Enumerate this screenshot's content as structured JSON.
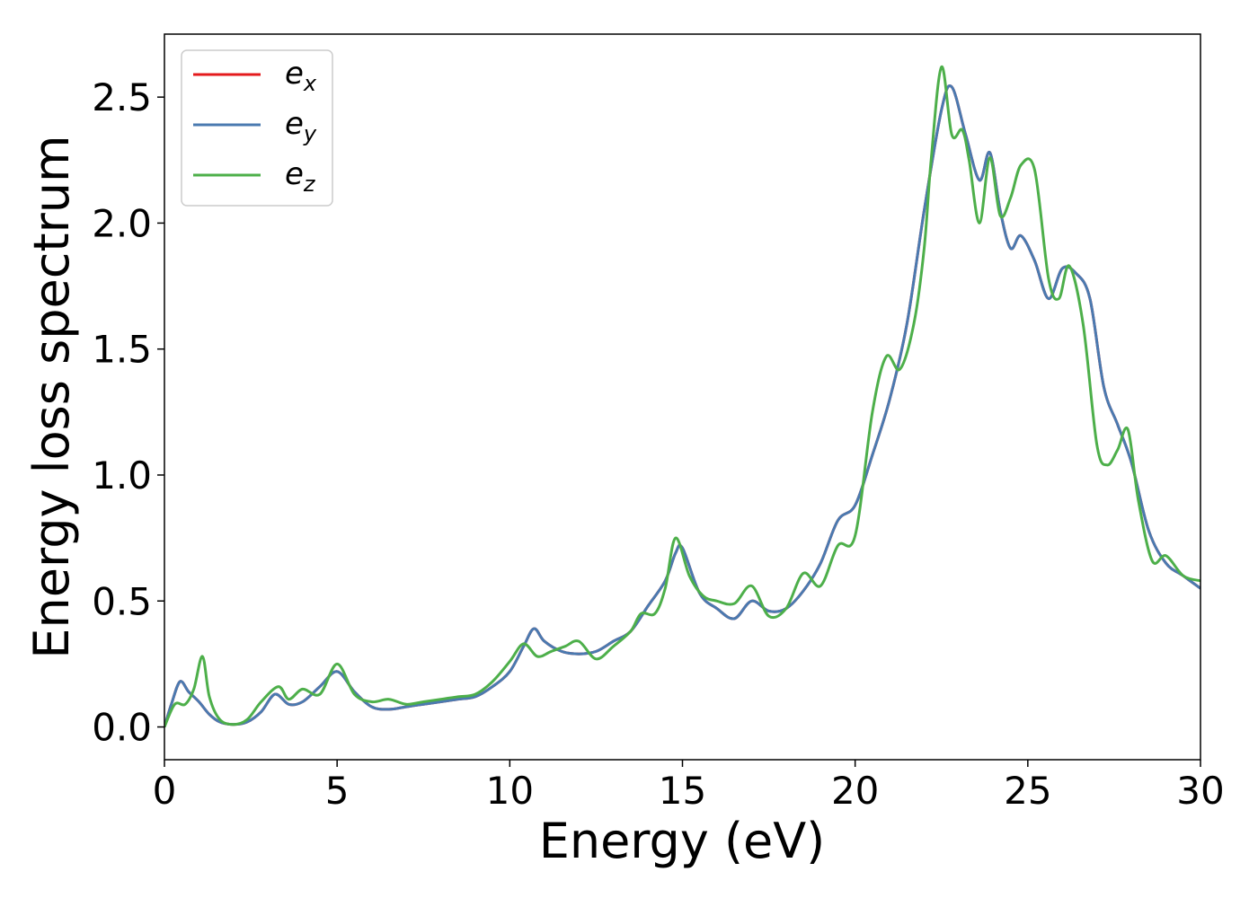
{
  "chart_data": {
    "type": "line",
    "xlabel": "Energy (eV)",
    "ylabel": "Energy loss spectrum",
    "xlim": [
      0,
      30
    ],
    "ylim": [
      -0.13,
      2.75
    ],
    "xticks": [
      0,
      5,
      10,
      15,
      20,
      25,
      30
    ],
    "xtick_labels": [
      "0",
      "5",
      "10",
      "15",
      "20",
      "25",
      "30"
    ],
    "yticks": [
      0.0,
      0.5,
      1.0,
      1.5,
      2.0,
      2.5
    ],
    "ytick_labels": [
      "0.0",
      "0.5",
      "1.0",
      "1.5",
      "2.0",
      "2.5"
    ],
    "grid": false,
    "legend_position": "top-left",
    "series": [
      {
        "name": "e",
        "name_sub": "x",
        "color": "#e41a1c",
        "x": [
          0,
          0.2,
          0.45,
          0.7,
          1.0,
          1.3,
          1.6,
          2.0,
          2.4,
          2.8,
          3.2,
          3.6,
          4.0,
          4.5,
          5.0,
          5.5,
          6.0,
          6.5,
          7.0,
          7.5,
          8.0,
          8.5,
          9.0,
          9.5,
          10.0,
          10.4,
          10.7,
          11.0,
          11.5,
          12.0,
          12.5,
          13.0,
          13.5,
          14.0,
          14.5,
          14.8,
          15.0,
          15.5,
          16.0,
          16.5,
          17.0,
          17.5,
          18.0,
          18.5,
          19.0,
          19.5,
          20.0,
          20.5,
          21.0,
          21.5,
          22.0,
          22.5,
          22.8,
          23.2,
          23.6,
          23.9,
          24.2,
          24.5,
          24.8,
          25.2,
          25.6,
          26.0,
          26.4,
          26.8,
          27.2,
          27.6,
          28.0,
          28.5,
          29.0,
          29.5,
          30.0
        ],
        "values": [
          0.0,
          0.09,
          0.18,
          0.14,
          0.1,
          0.05,
          0.02,
          0.01,
          0.02,
          0.06,
          0.13,
          0.09,
          0.1,
          0.16,
          0.22,
          0.14,
          0.08,
          0.07,
          0.08,
          0.09,
          0.1,
          0.11,
          0.12,
          0.16,
          0.22,
          0.32,
          0.39,
          0.34,
          0.3,
          0.29,
          0.3,
          0.34,
          0.38,
          0.48,
          0.58,
          0.69,
          0.71,
          0.53,
          0.47,
          0.43,
          0.5,
          0.46,
          0.47,
          0.54,
          0.65,
          0.82,
          0.88,
          1.08,
          1.3,
          1.6,
          2.05,
          2.45,
          2.54,
          2.35,
          2.17,
          2.28,
          2.05,
          1.9,
          1.95,
          1.85,
          1.7,
          1.82,
          1.8,
          1.7,
          1.35,
          1.2,
          1.05,
          0.78,
          0.65,
          0.6,
          0.55
        ]
      },
      {
        "name": "e",
        "name_sub": "y",
        "color": "#4a7ab0",
        "x": [
          0,
          0.2,
          0.45,
          0.7,
          1.0,
          1.3,
          1.6,
          2.0,
          2.4,
          2.8,
          3.2,
          3.6,
          4.0,
          4.5,
          5.0,
          5.5,
          6.0,
          6.5,
          7.0,
          7.5,
          8.0,
          8.5,
          9.0,
          9.5,
          10.0,
          10.4,
          10.7,
          11.0,
          11.5,
          12.0,
          12.5,
          13.0,
          13.5,
          14.0,
          14.5,
          14.8,
          15.0,
          15.5,
          16.0,
          16.5,
          17.0,
          17.5,
          18.0,
          18.5,
          19.0,
          19.5,
          20.0,
          20.5,
          21.0,
          21.5,
          22.0,
          22.5,
          22.8,
          23.2,
          23.6,
          23.9,
          24.2,
          24.5,
          24.8,
          25.2,
          25.6,
          26.0,
          26.4,
          26.8,
          27.2,
          27.6,
          28.0,
          28.5,
          29.0,
          29.5,
          30.0
        ],
        "values": [
          0.0,
          0.09,
          0.18,
          0.14,
          0.1,
          0.05,
          0.02,
          0.01,
          0.02,
          0.06,
          0.13,
          0.09,
          0.1,
          0.16,
          0.22,
          0.14,
          0.08,
          0.07,
          0.08,
          0.09,
          0.1,
          0.11,
          0.12,
          0.16,
          0.22,
          0.32,
          0.39,
          0.34,
          0.3,
          0.29,
          0.3,
          0.34,
          0.38,
          0.48,
          0.58,
          0.69,
          0.71,
          0.53,
          0.47,
          0.43,
          0.5,
          0.46,
          0.47,
          0.54,
          0.65,
          0.82,
          0.88,
          1.08,
          1.3,
          1.6,
          2.05,
          2.45,
          2.54,
          2.35,
          2.17,
          2.28,
          2.05,
          1.9,
          1.95,
          1.85,
          1.7,
          1.82,
          1.8,
          1.7,
          1.35,
          1.2,
          1.05,
          0.78,
          0.65,
          0.6,
          0.55
        ]
      },
      {
        "name": "e",
        "name_sub": "z",
        "color": "#4daf4a",
        "x": [
          0,
          0.3,
          0.6,
          0.85,
          1.1,
          1.3,
          1.6,
          2.0,
          2.4,
          2.8,
          3.3,
          3.6,
          4.0,
          4.5,
          5.0,
          5.5,
          6.0,
          6.5,
          7.0,
          7.5,
          8.0,
          8.5,
          9.0,
          9.5,
          10.0,
          10.4,
          10.8,
          11.2,
          11.6,
          12.0,
          12.5,
          13.0,
          13.5,
          13.8,
          14.2,
          14.5,
          14.8,
          15.2,
          15.6,
          16.0,
          16.5,
          17.0,
          17.5,
          18.0,
          18.5,
          19.0,
          19.5,
          20.0,
          20.5,
          20.9,
          21.3,
          21.7,
          22.0,
          22.2,
          22.5,
          22.8,
          23.1,
          23.3,
          23.6,
          23.9,
          24.2,
          24.5,
          24.8,
          25.2,
          25.6,
          25.9,
          26.2,
          26.6,
          27.0,
          27.3,
          27.6,
          27.9,
          28.2,
          28.6,
          29.0,
          29.5,
          30.0
        ],
        "values": [
          0.0,
          0.09,
          0.09,
          0.15,
          0.28,
          0.12,
          0.03,
          0.01,
          0.03,
          0.1,
          0.16,
          0.11,
          0.15,
          0.13,
          0.25,
          0.13,
          0.1,
          0.11,
          0.09,
          0.1,
          0.11,
          0.12,
          0.13,
          0.18,
          0.26,
          0.33,
          0.28,
          0.3,
          0.32,
          0.34,
          0.27,
          0.32,
          0.38,
          0.45,
          0.45,
          0.55,
          0.75,
          0.6,
          0.52,
          0.5,
          0.49,
          0.56,
          0.44,
          0.47,
          0.61,
          0.56,
          0.72,
          0.76,
          1.25,
          1.47,
          1.42,
          1.6,
          1.9,
          2.25,
          2.62,
          2.35,
          2.37,
          2.25,
          2.0,
          2.26,
          2.03,
          2.1,
          2.23,
          2.21,
          1.78,
          1.7,
          1.83,
          1.6,
          1.12,
          1.04,
          1.1,
          1.18,
          0.9,
          0.66,
          0.68,
          0.6,
          0.58
        ]
      }
    ]
  }
}
